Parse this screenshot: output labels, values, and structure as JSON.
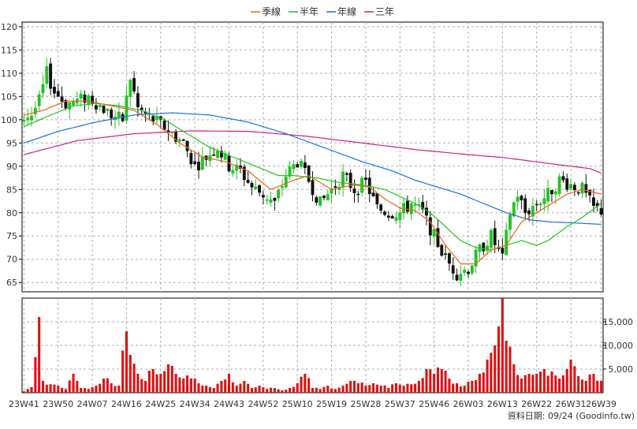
{
  "chart_data": {
    "type": "candlestick",
    "legend": [
      {
        "name": "季線",
        "color": "#e8661a"
      },
      {
        "name": "半年",
        "color": "#22c322"
      },
      {
        "name": "年線",
        "color": "#1a6fe0"
      },
      {
        "name": "三年",
        "color": "#d0207a"
      }
    ],
    "legend_position": "top-center",
    "price_axis": {
      "ylim": [
        63,
        121
      ],
      "ticks": [
        65,
        70,
        75,
        80,
        85,
        90,
        95,
        100,
        105,
        110,
        115,
        120
      ],
      "grid": true
    },
    "volume_axis": {
      "ylim": [
        0,
        20000
      ],
      "ticks": [
        5000,
        10000,
        15000
      ],
      "tick_labels": [
        "5,000",
        "10,000",
        "15,000"
      ],
      "grid": true
    },
    "x_labels": [
      {
        "label": "23W41",
        "week": 1
      },
      {
        "label": "23W50",
        "week": 10
      },
      {
        "label": "24W07",
        "week": 19
      },
      {
        "label": "24W16",
        "week": 28
      },
      {
        "label": "24W25",
        "week": 37
      },
      {
        "label": "24W34",
        "week": 46
      },
      {
        "label": "24W43",
        "week": 55
      },
      {
        "label": "24W52",
        "week": 64
      },
      {
        "label": "25W10",
        "week": 73
      },
      {
        "label": "25W19",
        "week": 82
      },
      {
        "label": "25W28",
        "week": 91
      },
      {
        "label": "25W37",
        "week": 100
      },
      {
        "label": "25W46",
        "week": 109
      },
      {
        "label": "26W03",
        "week": 118
      },
      {
        "label": "26W13",
        "week": 127
      },
      {
        "label": "26W22",
        "week": 136
      },
      {
        "label": "26W31",
        "week": 145
      },
      {
        "label": "26W39",
        "week": 153
      }
    ],
    "footer": "資料日期: 09/24  (Goodinfo.tw)",
    "up_color": "#22c322",
    "down_color": "#111111",
    "volume_color": "#dd1111",
    "close_anchors": [
      [
        1,
        100.5
      ],
      [
        3,
        101
      ],
      [
        5,
        104
      ],
      [
        7,
        110
      ],
      [
        9,
        106
      ],
      [
        12,
        103.5
      ],
      [
        15,
        104
      ],
      [
        18,
        105
      ],
      [
        21,
        103
      ],
      [
        24,
        101
      ],
      [
        27,
        100
      ],
      [
        29,
        109
      ],
      [
        31,
        102.5
      ],
      [
        34,
        100.5
      ],
      [
        37,
        99
      ],
      [
        40,
        97
      ],
      [
        43,
        95
      ],
      [
        46,
        90
      ],
      [
        49,
        92
      ],
      [
        52,
        94
      ],
      [
        55,
        90
      ],
      [
        58,
        89
      ],
      [
        61,
        85.5
      ],
      [
        64,
        84
      ],
      [
        67,
        82
      ],
      [
        70,
        88
      ],
      [
        73,
        91
      ],
      [
        76,
        87
      ],
      [
        79,
        82
      ],
      [
        82,
        85
      ],
      [
        85,
        88
      ],
      [
        88,
        85
      ],
      [
        91,
        86.5
      ],
      [
        94,
        81
      ],
      [
        97,
        80
      ],
      [
        100,
        80
      ],
      [
        103,
        82
      ],
      [
        106,
        80
      ],
      [
        109,
        75
      ],
      [
        112,
        70
      ],
      [
        115,
        67
      ],
      [
        118,
        68
      ],
      [
        121,
        72
      ],
      [
        124,
        75
      ],
      [
        127,
        70
      ],
      [
        129,
        80
      ],
      [
        131,
        84
      ],
      [
        133,
        80
      ],
      [
        136,
        82
      ],
      [
        139,
        84
      ],
      [
        142,
        87
      ],
      [
        145,
        86
      ],
      [
        148,
        85
      ],
      [
        151,
        81
      ],
      [
        153,
        80.5
      ]
    ],
    "volume_anchors": [
      [
        1,
        300
      ],
      [
        3,
        1200
      ],
      [
        5,
        16000
      ],
      [
        6,
        2500
      ],
      [
        8,
        1800
      ],
      [
        10,
        1500
      ],
      [
        12,
        800
      ],
      [
        14,
        4000
      ],
      [
        16,
        1000
      ],
      [
        18,
        800
      ],
      [
        20,
        1500
      ],
      [
        22,
        3000
      ],
      [
        24,
        2000
      ],
      [
        26,
        1500
      ],
      [
        28,
        13000
      ],
      [
        29,
        8000
      ],
      [
        31,
        4000
      ],
      [
        33,
        2500
      ],
      [
        35,
        5000
      ],
      [
        37,
        4000
      ],
      [
        39,
        6000
      ],
      [
        41,
        4000
      ],
      [
        43,
        3000
      ],
      [
        45,
        3000
      ],
      [
        47,
        2000
      ],
      [
        49,
        1500
      ],
      [
        51,
        1000
      ],
      [
        53,
        2500
      ],
      [
        55,
        4000
      ],
      [
        57,
        1500
      ],
      [
        59,
        2500
      ],
      [
        61,
        1000
      ],
      [
        63,
        1500
      ],
      [
        65,
        800
      ],
      [
        67,
        1000
      ],
      [
        69,
        500
      ],
      [
        71,
        1000
      ],
      [
        73,
        2000
      ],
      [
        75,
        4000
      ],
      [
        77,
        1000
      ],
      [
        79,
        800
      ],
      [
        81,
        1500
      ],
      [
        83,
        800
      ],
      [
        85,
        1500
      ],
      [
        87,
        2500
      ],
      [
        89,
        2000
      ],
      [
        91,
        1500
      ],
      [
        93,
        2000
      ],
      [
        95,
        1500
      ],
      [
        97,
        1000
      ],
      [
        99,
        2000
      ],
      [
        101,
        1500
      ],
      [
        103,
        1800
      ],
      [
        105,
        2500
      ],
      [
        107,
        5000
      ],
      [
        109,
        4000
      ],
      [
        111,
        5000
      ],
      [
        113,
        3000
      ],
      [
        115,
        2000
      ],
      [
        117,
        1500
      ],
      [
        119,
        2500
      ],
      [
        121,
        4000
      ],
      [
        123,
        7000
      ],
      [
        125,
        10000
      ],
      [
        126,
        14000
      ],
      [
        127,
        20000
      ],
      [
        128,
        11000
      ],
      [
        130,
        6000
      ],
      [
        132,
        3000
      ],
      [
        134,
        4000
      ],
      [
        136,
        4000
      ],
      [
        138,
        5000
      ],
      [
        140,
        4500
      ],
      [
        142,
        3000
      ],
      [
        144,
        5000
      ],
      [
        145,
        7000
      ],
      [
        147,
        3500
      ],
      [
        149,
        2500
      ],
      [
        151,
        4000
      ],
      [
        153,
        2500
      ]
    ],
    "ma_season_anchors": [
      [
        1,
        101
      ],
      [
        6,
        102
      ],
      [
        12,
        104
      ],
      [
        18,
        104
      ],
      [
        24,
        103
      ],
      [
        30,
        102
      ],
      [
        36,
        99
      ],
      [
        42,
        95
      ],
      [
        48,
        92
      ],
      [
        54,
        91
      ],
      [
        60,
        89
      ],
      [
        66,
        85
      ],
      [
        72,
        87
      ],
      [
        76,
        88
      ],
      [
        82,
        85
      ],
      [
        88,
        86
      ],
      [
        92,
        85.5
      ],
      [
        96,
        83
      ],
      [
        100,
        81
      ],
      [
        104,
        80.5
      ],
      [
        108,
        78
      ],
      [
        112,
        73
      ],
      [
        116,
        69
      ],
      [
        120,
        69
      ],
      [
        124,
        72
      ],
      [
        128,
        73
      ],
      [
        132,
        78
      ],
      [
        136,
        80
      ],
      [
        140,
        82
      ],
      [
        144,
        84
      ],
      [
        148,
        85
      ],
      [
        153,
        84
      ]
    ],
    "ma_half_anchors": [
      [
        1,
        98.5
      ],
      [
        8,
        101
      ],
      [
        14,
        103
      ],
      [
        20,
        103.5
      ],
      [
        26,
        103
      ],
      [
        32,
        102
      ],
      [
        38,
        100
      ],
      [
        44,
        97
      ],
      [
        50,
        94
      ],
      [
        56,
        92
      ],
      [
        62,
        90
      ],
      [
        68,
        88
      ],
      [
        72,
        88
      ],
      [
        78,
        87.5
      ],
      [
        84,
        86.5
      ],
      [
        90,
        86
      ],
      [
        96,
        85
      ],
      [
        100,
        83.5
      ],
      [
        104,
        82
      ],
      [
        108,
        80
      ],
      [
        112,
        77
      ],
      [
        116,
        74
      ],
      [
        120,
        72.5
      ],
      [
        124,
        72
      ],
      [
        128,
        73
      ],
      [
        132,
        74
      ],
      [
        136,
        73
      ],
      [
        139,
        74
      ],
      [
        144,
        77
      ],
      [
        148,
        79
      ],
      [
        153,
        82
      ]
    ],
    "ma_year_anchors": [
      [
        1,
        95
      ],
      [
        10,
        97.5
      ],
      [
        20,
        99.5
      ],
      [
        30,
        101
      ],
      [
        40,
        101.5
      ],
      [
        50,
        101
      ],
      [
        60,
        99.5
      ],
      [
        70,
        97
      ],
      [
        80,
        94
      ],
      [
        90,
        91
      ],
      [
        98,
        89
      ],
      [
        104,
        87
      ],
      [
        110,
        85.5
      ],
      [
        116,
        84
      ],
      [
        122,
        82
      ],
      [
        128,
        80
      ],
      [
        134,
        78.5
      ],
      [
        140,
        78
      ],
      [
        146,
        77.8
      ],
      [
        153,
        77.5
      ]
    ],
    "ma_3yr_anchors": [
      [
        1,
        92.5
      ],
      [
        15,
        95.5
      ],
      [
        30,
        97
      ],
      [
        45,
        97.6
      ],
      [
        60,
        97.5
      ],
      [
        75,
        96.5
      ],
      [
        90,
        95
      ],
      [
        105,
        93.5
      ],
      [
        118,
        92.5
      ],
      [
        128,
        91.8
      ],
      [
        140,
        90.5
      ],
      [
        150,
        89.5
      ],
      [
        153,
        88.5
      ]
    ]
  }
}
